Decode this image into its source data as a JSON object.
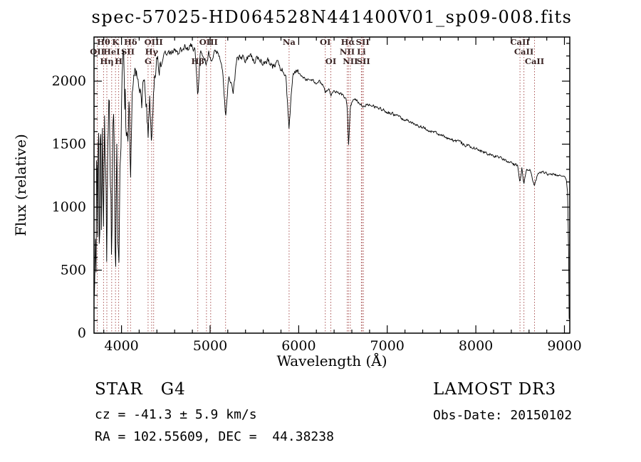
{
  "chart_data": {
    "type": "line",
    "title": "spec-57025-HD064528N441400V01_sp09-008.fits",
    "xlabel": "Wavelength (Å)",
    "ylabel": "Flux (relative)",
    "xlim": [
      3690,
      9060
    ],
    "ylim": [
      0,
      2350
    ],
    "xticks": [
      4000,
      5000,
      6000,
      7000,
      8000,
      9000
    ],
    "xminor_step": 200,
    "yticks": [
      0,
      500,
      1000,
      1500,
      2000
    ],
    "yminor_step": 100,
    "grid": false,
    "legend": "none",
    "colors": {
      "spectrum": "#000000",
      "axis": "#000000",
      "marker_line": "#aa5555",
      "marker_label": "#3a2424"
    },
    "markers": [
      3727,
      3798,
      3835,
      3889,
      3933,
      3968,
      4072,
      4102,
      4300,
      4340,
      4363,
      4861,
      4959,
      5007,
      5175,
      5892,
      6300,
      6363,
      6548,
      6563,
      6583,
      6708,
      6716,
      6731,
      8498,
      8542,
      8662
    ],
    "marker_labels": [
      {
        "wl": 3798,
        "row": 1,
        "text": "Hθ"
      },
      {
        "wl": 3933,
        "row": 1,
        "text": "K"
      },
      {
        "wl": 4102,
        "row": 1,
        "text": "Hδ"
      },
      {
        "wl": 4363,
        "row": 1,
        "text": "OIII"
      },
      {
        "wl": 4983,
        "row": 1,
        "text": "OIII"
      },
      {
        "wl": 5892,
        "row": 1,
        "text": "Na"
      },
      {
        "wl": 6300,
        "row": 1,
        "text": "OI"
      },
      {
        "wl": 6556,
        "row": 1,
        "text": "Hα"
      },
      {
        "wl": 6722,
        "row": 1,
        "text": "SII"
      },
      {
        "wl": 8498,
        "row": 1,
        "text": "CaII"
      },
      {
        "wl": 3727,
        "row": 2,
        "text": "OII"
      },
      {
        "wl": 3889,
        "row": 2,
        "text": "HeI"
      },
      {
        "wl": 4072,
        "row": 2,
        "text": "SII"
      },
      {
        "wl": 4340,
        "row": 2,
        "text": "Hγ"
      },
      {
        "wl": 6548,
        "row": 2,
        "text": "NII"
      },
      {
        "wl": 6708,
        "row": 2,
        "text": "Li"
      },
      {
        "wl": 8542,
        "row": 2,
        "text": "CaII"
      },
      {
        "wl": 3835,
        "row": 3,
        "text": "Hη"
      },
      {
        "wl": 3968,
        "row": 3,
        "text": "H"
      },
      {
        "wl": 4300,
        "row": 3,
        "text": "G"
      },
      {
        "wl": 4861,
        "row": 3,
        "text": "Hβ"
      },
      {
        "wl": 6363,
        "row": 3,
        "text": "OI"
      },
      {
        "wl": 6583,
        "row": 3,
        "text": "NII"
      },
      {
        "wl": 6731,
        "row": 3,
        "text": "SII"
      },
      {
        "wl": 8662,
        "row": 3,
        "text": "CaII"
      }
    ],
    "noise_bands": [
      {
        "until": 4050,
        "amp": 270
      },
      {
        "until": 4450,
        "amp": 85
      },
      {
        "until": 6005,
        "amp": 30
      },
      {
        "until": 8950,
        "amp": 14
      },
      {
        "until": 9100,
        "amp": 4
      }
    ],
    "spectrum_anchors": [
      [
        3695,
        260
      ],
      [
        3705,
        950
      ],
      [
        3713,
        420
      ],
      [
        3722,
        1500
      ],
      [
        3731,
        700
      ],
      [
        3742,
        1700
      ],
      [
        3752,
        520
      ],
      [
        3763,
        1850
      ],
      [
        3774,
        820
      ],
      [
        3786,
        1600
      ],
      [
        3798,
        720
      ],
      [
        3809,
        1780
      ],
      [
        3821,
        1150
      ],
      [
        3835,
        470
      ],
      [
        3848,
        1520
      ],
      [
        3861,
        1760
      ],
      [
        3875,
        930
      ],
      [
        3889,
        620
      ],
      [
        3901,
        1420
      ],
      [
        3916,
        1680
      ],
      [
        3933,
        400
      ],
      [
        3947,
        1320
      ],
      [
        3958,
        930
      ],
      [
        3968,
        500
      ],
      [
        3984,
        1520
      ],
      [
        4000,
        1860
      ],
      [
        4022,
        1960
      ],
      [
        4046,
        1820
      ],
      [
        4072,
        1470
      ],
      [
        4087,
        1820
      ],
      [
        4102,
        1170
      ],
      [
        4121,
        1920
      ],
      [
        4150,
        2060
      ],
      [
        4180,
        2090
      ],
      [
        4210,
        1900
      ],
      [
        4227,
        1800
      ],
      [
        4250,
        2020
      ],
      [
        4284,
        1780
      ],
      [
        4300,
        1540
      ],
      [
        4320,
        1870
      ],
      [
        4340,
        1430
      ],
      [
        4361,
        1920
      ],
      [
        4390,
        2150
      ],
      [
        4430,
        2110
      ],
      [
        4470,
        2200
      ],
      [
        4510,
        2240
      ],
      [
        4550,
        2210
      ],
      [
        4600,
        2250
      ],
      [
        4650,
        2210
      ],
      [
        4700,
        2280
      ],
      [
        4750,
        2250
      ],
      [
        4800,
        2290
      ],
      [
        4832,
        2240
      ],
      [
        4861,
        1870
      ],
      [
        4892,
        2250
      ],
      [
        4930,
        2210
      ],
      [
        4959,
        2120
      ],
      [
        4983,
        2230
      ],
      [
        5007,
        2160
      ],
      [
        5050,
        2250
      ],
      [
        5100,
        2210
      ],
      [
        5140,
        2110
      ],
      [
        5175,
        1720
      ],
      [
        5212,
        2060
      ],
      [
        5260,
        1910
      ],
      [
        5300,
        2160
      ],
      [
        5350,
        2200
      ],
      [
        5405,
        2160
      ],
      [
        5455,
        2210
      ],
      [
        5505,
        2160
      ],
      [
        5555,
        2190
      ],
      [
        5605,
        2130
      ],
      [
        5655,
        2160
      ],
      [
        5705,
        2110
      ],
      [
        5755,
        2150
      ],
      [
        5805,
        2100
      ],
      [
        5852,
        2060
      ],
      [
        5892,
        1620
      ],
      [
        5932,
        2050
      ],
      [
        5982,
        2080
      ],
      [
        6032,
        2040
      ],
      [
        6082,
        2010
      ],
      [
        6132,
        2020
      ],
      [
        6182,
        1990
      ],
      [
        6232,
        1995
      ],
      [
        6282,
        1965
      ],
      [
        6300,
        1905
      ],
      [
        6338,
        1945
      ],
      [
        6363,
        1875
      ],
      [
        6402,
        1925
      ],
      [
        6452,
        1905
      ],
      [
        6502,
        1885
      ],
      [
        6532,
        1855
      ],
      [
        6548,
        1805
      ],
      [
        6563,
        1490
      ],
      [
        6583,
        1790
      ],
      [
        6612,
        1855
      ],
      [
        6655,
        1845
      ],
      [
        6708,
        1805
      ],
      [
        6716,
        1795
      ],
      [
        6731,
        1805
      ],
      [
        6782,
        1815
      ],
      [
        6832,
        1805
      ],
      [
        6882,
        1795
      ],
      [
        6932,
        1775
      ],
      [
        6982,
        1762
      ],
      [
        7032,
        1745
      ],
      [
        7082,
        1732
      ],
      [
        7132,
        1715
      ],
      [
        7182,
        1695
      ],
      [
        7232,
        1685
      ],
      [
        7282,
        1665
      ],
      [
        7332,
        1655
      ],
      [
        7382,
        1635
      ],
      [
        7432,
        1625
      ],
      [
        7482,
        1605
      ],
      [
        7532,
        1595
      ],
      [
        7582,
        1575
      ],
      [
        7632,
        1565
      ],
      [
        7682,
        1548
      ],
      [
        7732,
        1535
      ],
      [
        7782,
        1525
      ],
      [
        7832,
        1508
      ],
      [
        7882,
        1495
      ],
      [
        7932,
        1480
      ],
      [
        7982,
        1468
      ],
      [
        8032,
        1455
      ],
      [
        8082,
        1440
      ],
      [
        8132,
        1425
      ],
      [
        8182,
        1412
      ],
      [
        8232,
        1398
      ],
      [
        8282,
        1385
      ],
      [
        8332,
        1370
      ],
      [
        8382,
        1356
      ],
      [
        8432,
        1340
      ],
      [
        8470,
        1330
      ],
      [
        8498,
        1195
      ],
      [
        8520,
        1312
      ],
      [
        8542,
        1185
      ],
      [
        8572,
        1300
      ],
      [
        8612,
        1290
      ],
      [
        8662,
        1165
      ],
      [
        8702,
        1282
      ],
      [
        8752,
        1272
      ],
      [
        8802,
        1262
      ],
      [
        8852,
        1255
      ],
      [
        8902,
        1252
      ],
      [
        8952,
        1248
      ],
      [
        9002,
        1242
      ],
      [
        9022,
        1215
      ],
      [
        9036,
        1110
      ],
      [
        9046,
        720
      ],
      [
        9052,
        160
      ],
      [
        9055,
        25
      ]
    ]
  },
  "footer": {
    "class_label": "STAR   G4",
    "survey": "LAMOST DR3",
    "cz": "cz = -41.3 ± 5.9 km/s",
    "obs_date": "Obs-Date: 20150102",
    "coords": "RA = 102.55609, DEC =  44.38238"
  }
}
